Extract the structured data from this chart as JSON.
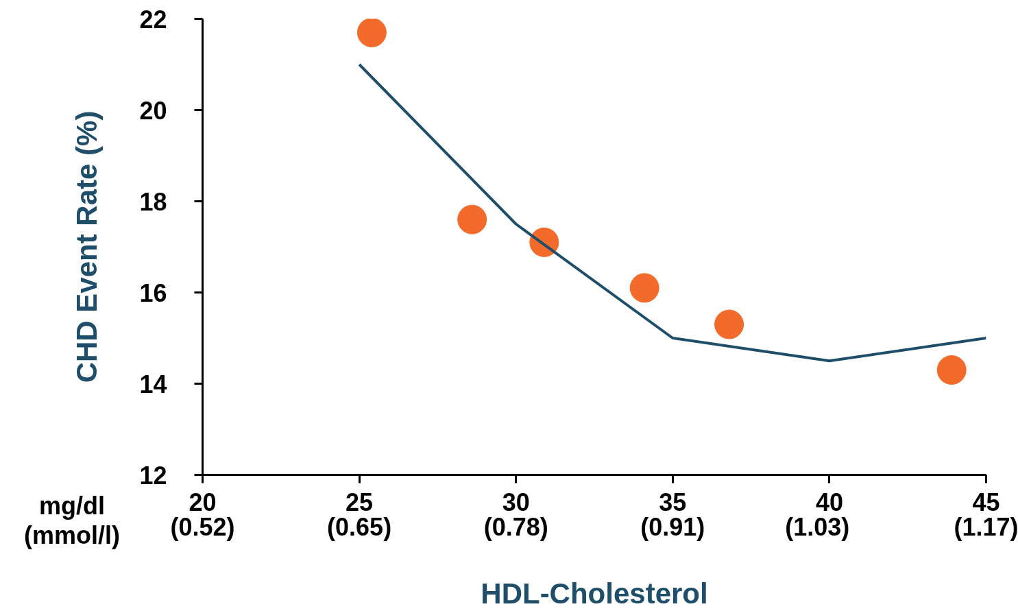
{
  "chart_data": {
    "type": "scatter",
    "xlabel": "HDL-Cholesterol",
    "ylabel": "CHD Event Rate (%)",
    "annotations": [
      "mg/dl\n(mmol/l)"
    ],
    "xlim": [
      20,
      45
    ],
    "ylim": [
      12,
      22
    ],
    "xticks": [
      20,
      25,
      30,
      35,
      40,
      45
    ],
    "x2lim": [
      0.52,
      1.17
    ],
    "x2ticks": [
      {
        "value": 0.52,
        "label": "(0.52)"
      },
      {
        "value": 0.65,
        "label": "(0.65)"
      },
      {
        "value": 0.78,
        "label": "(0.78)"
      },
      {
        "value": 0.91,
        "label": "(0.91)"
      },
      {
        "value": 1.03,
        "label": "(1.03)"
      },
      {
        "value": 1.17,
        "label": "(1.17)"
      }
    ],
    "yticks": [
      12,
      14,
      16,
      18,
      20,
      22
    ],
    "grid": false,
    "marker": "circle",
    "series": [
      {
        "color": "#f26b2a",
        "x": [
          25.4,
          28.6,
          30.9,
          34.1,
          36.8,
          43.9
        ],
        "values": [
          21.7,
          17.6,
          17.1,
          16.1,
          15.3,
          14.3
        ]
      },
      {
        "type": "line",
        "marker": "none",
        "color": "#1f4e6b",
        "x": [
          25,
          30,
          35,
          40,
          45
        ],
        "values": [
          21.0,
          17.5,
          15.0,
          14.5,
          15.0
        ]
      }
    ]
  }
}
